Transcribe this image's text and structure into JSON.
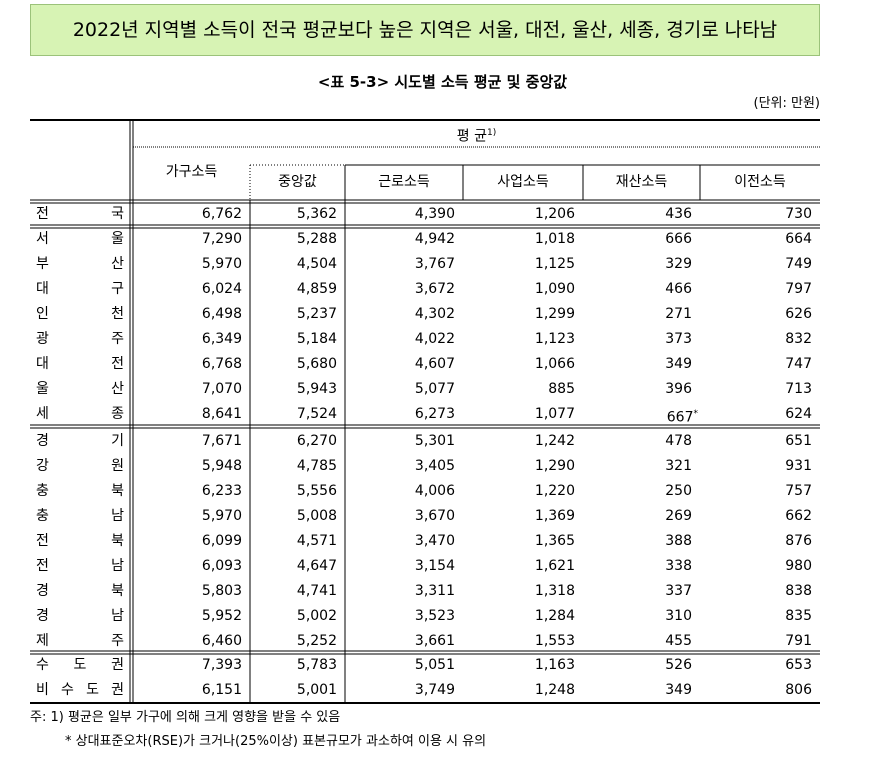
{
  "header": {
    "title": "2022년 지역별 소득이 전국 평균보다 높은 지역은 서울, 대전, 울산, 세종, 경기로 나타남",
    "caption": "<표 5-3> 시도별 소득 평균 및 중앙값",
    "unit": "(단위: 만원)"
  },
  "table": {
    "group_header": {
      "text": "평 균",
      "note": "1)"
    },
    "columns": [
      "가구소득",
      "중앙값",
      "근로소득",
      "사업소득",
      "재산소득",
      "이전소득"
    ],
    "rows": [
      {
        "region": "전 국",
        "cells": [
          "6,762",
          "5,362",
          "4,390",
          "1,206",
          "436",
          "730"
        ]
      },
      {
        "region": "서 울",
        "cells": [
          "7,290",
          "5,288",
          "4,942",
          "1,018",
          "666",
          "664"
        ]
      },
      {
        "region": "부 산",
        "cells": [
          "5,970",
          "4,504",
          "3,767",
          "1,125",
          "329",
          "749"
        ]
      },
      {
        "region": "대 구",
        "cells": [
          "6,024",
          "4,859",
          "3,672",
          "1,090",
          "466",
          "797"
        ]
      },
      {
        "region": "인 천",
        "cells": [
          "6,498",
          "5,237",
          "4,302",
          "1,299",
          "271",
          "626"
        ]
      },
      {
        "region": "광 주",
        "cells": [
          "6,349",
          "5,184",
          "4,022",
          "1,123",
          "373",
          "832"
        ]
      },
      {
        "region": "대 전",
        "cells": [
          "6,768",
          "5,680",
          "4,607",
          "1,066",
          "349",
          "747"
        ]
      },
      {
        "region": "울 산",
        "cells": [
          "7,070",
          "5,943",
          "5,077",
          "885",
          "396",
          "713"
        ]
      },
      {
        "region": "세 종",
        "cells": [
          "8,641",
          "7,524",
          "6,273",
          "1,077",
          {
            "text": "667",
            "note": "*"
          },
          "624"
        ]
      },
      {
        "region": "경 기",
        "cells": [
          "7,671",
          "6,270",
          "5,301",
          "1,242",
          "478",
          "651"
        ]
      },
      {
        "region": "강 원",
        "cells": [
          "5,948",
          "4,785",
          "3,405",
          "1,290",
          "321",
          "931"
        ]
      },
      {
        "region": "충 북",
        "cells": [
          "6,233",
          "5,556",
          "4,006",
          "1,220",
          "250",
          "757"
        ]
      },
      {
        "region": "충 남",
        "cells": [
          "5,970",
          "5,008",
          "3,670",
          "1,369",
          "269",
          "662"
        ]
      },
      {
        "region": "전 북",
        "cells": [
          "6,099",
          "4,571",
          "3,470",
          "1,365",
          "388",
          "876"
        ]
      },
      {
        "region": "전 남",
        "cells": [
          "6,093",
          "4,647",
          "3,154",
          "1,621",
          "338",
          "980"
        ]
      },
      {
        "region": "경 북",
        "cells": [
          "5,803",
          "4,741",
          "3,311",
          "1,318",
          "337",
          "838"
        ]
      },
      {
        "region": "경 남",
        "cells": [
          "5,952",
          "5,002",
          "3,523",
          "1,284",
          "310",
          "835"
        ]
      },
      {
        "region": "제 주",
        "cells": [
          "6,460",
          "5,252",
          "3,661",
          "1,553",
          "455",
          "791"
        ]
      },
      {
        "region": "수 도 권",
        "cells": [
          "7,393",
          "5,783",
          "5,051",
          "1,163",
          "526",
          "653"
        ]
      },
      {
        "region": "비 수 도 권",
        "cells": [
          "6,151",
          "5,001",
          "3,749",
          "1,248",
          "349",
          "806"
        ]
      }
    ]
  },
  "footnotes": [
    "주: 1) 평균은 일부 가구에 의해 크게 영향을 받을 수 있음",
    "* 상대표준오차(RSE)가 크거나(25%이상) 표본규모가 과소하여 이용 시 유의"
  ]
}
